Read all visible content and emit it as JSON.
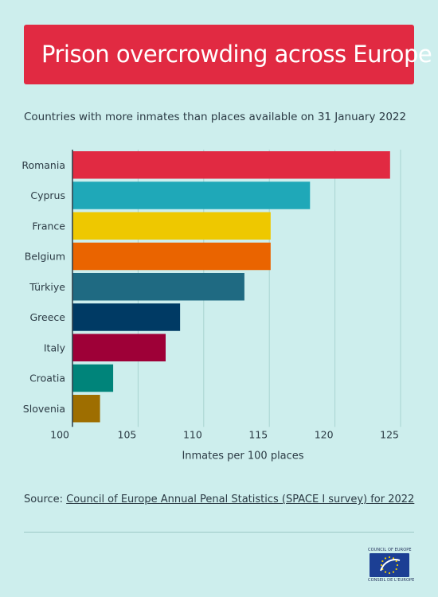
{
  "title": "Prison overcrowding across Europe",
  "subtitle": "Countries with more inmates than places available on 31 January 2022",
  "source": {
    "prefix": "Source: ",
    "link_text": "Council of Europe Annual Penal Statistics (SPACE I survey) for 2022"
  },
  "logo": {
    "top_text": "COUNCIL OF EUROPE",
    "bottom_text": "CONSEIL DE L'EUROPE",
    "flag_color": "#1c3f94",
    "star_color": "#ffffff"
  },
  "chart_data": {
    "type": "bar",
    "orientation": "horizontal",
    "categories": [
      "Romania",
      "Cyprus",
      "France",
      "Belgium",
      "Türkiye",
      "Greece",
      "Italy",
      "Croatia",
      "Slovenia"
    ],
    "values": [
      124.2,
      118.1,
      115.1,
      115.1,
      113.1,
      108.2,
      107.1,
      103.1,
      102.1
    ],
    "colors": [
      "#e12a42",
      "#1fa8b8",
      "#eec800",
      "#ea6400",
      "#1f6a82",
      "#003a64",
      "#9e0037",
      "#00847a",
      "#9e6e00"
    ],
    "xlabel": "Inmates per 100 places",
    "xlim": [
      100,
      125
    ],
    "xticks": [
      100,
      105,
      110,
      115,
      120,
      125
    ],
    "grid": true
  }
}
